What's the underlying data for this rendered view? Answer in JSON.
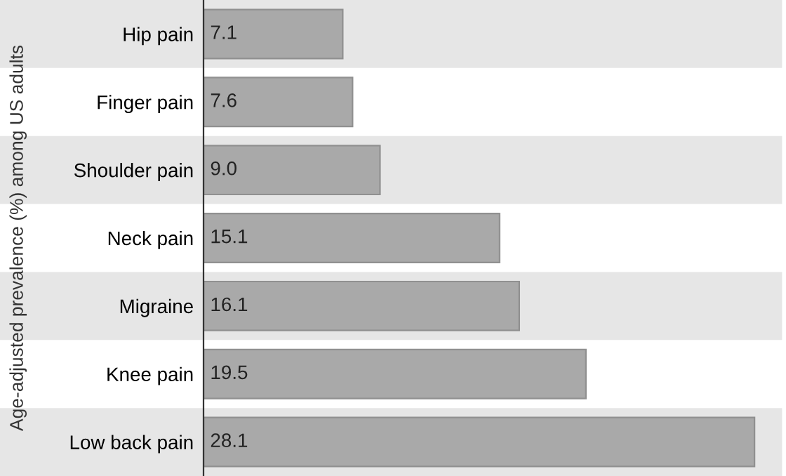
{
  "chart_data": {
    "type": "bar",
    "orientation": "horizontal",
    "ylabel": "Age-adjusted prevalence (%) among US adults",
    "categories": [
      "Hip pain",
      "Finger pain",
      "Shoulder pain",
      "Neck pain",
      "Migraine",
      "Knee pain",
      "Low back pain"
    ],
    "values": [
      7.1,
      7.6,
      9.0,
      15.1,
      16.1,
      19.5,
      28.1
    ],
    "value_labels": [
      "7.1",
      "7.6",
      "9.0",
      "15.1",
      "16.1",
      "19.5",
      "28.1"
    ],
    "color": "#a9a9a9",
    "grid": false,
    "legend": false
  }
}
